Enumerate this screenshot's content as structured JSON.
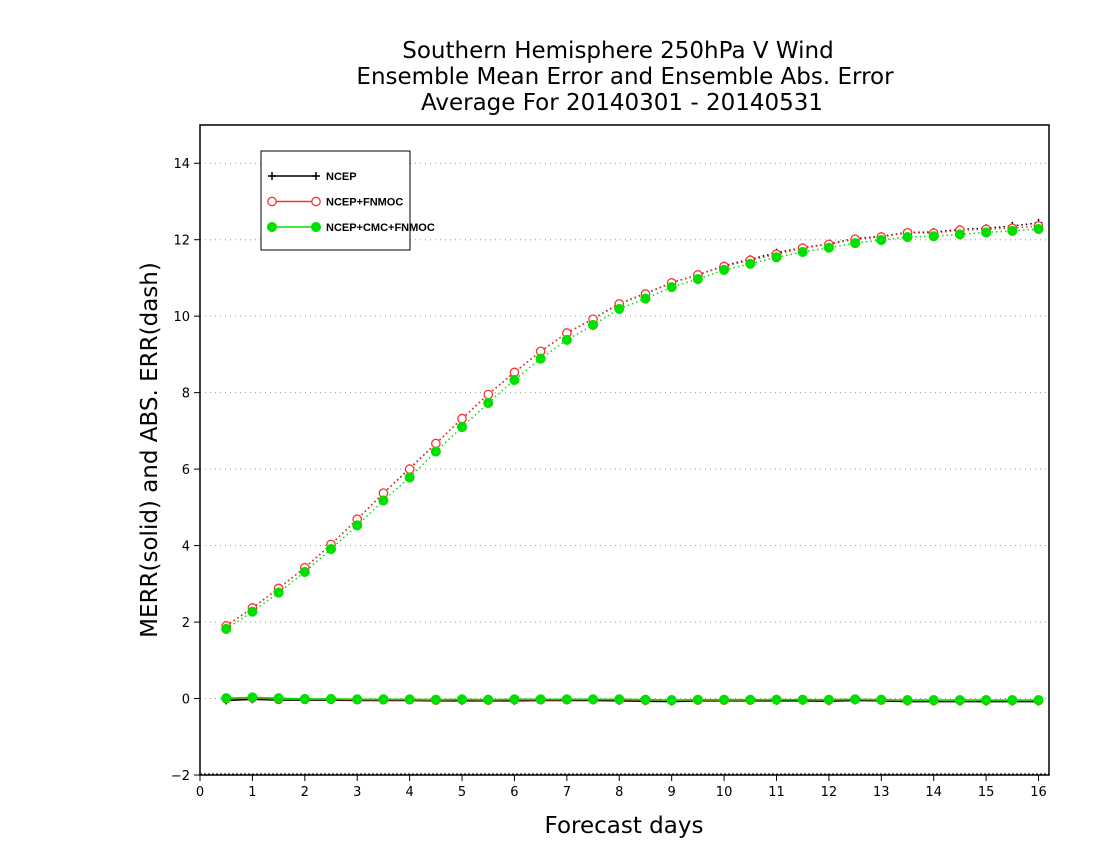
{
  "chart_data": {
    "type": "line",
    "title_lines": [
      "Southern Hemisphere 250hPa V Wind",
      "Ensemble Mean Error and Ensemble Abs. Error",
      "Average For 20140301 - 20140531"
    ],
    "xlabel": "Forecast days",
    "ylabel": "MERR(solid) and ABS. ERR(dash)",
    "xlim": [
      0,
      16.2
    ],
    "ylim": [
      -2,
      15
    ],
    "x_ticks": [
      0,
      1,
      2,
      3,
      4,
      5,
      6,
      7,
      8,
      9,
      10,
      11,
      12,
      13,
      14,
      15,
      16
    ],
    "y_ticks": [
      -2,
      0,
      2,
      4,
      6,
      8,
      10,
      12,
      14
    ],
    "grid": "horizontal dotted",
    "legend_position": "top-left",
    "x": [
      0.5,
      1,
      1.5,
      2,
      2.5,
      3,
      3.5,
      4,
      4.5,
      5,
      5.5,
      6,
      6.5,
      7,
      7.5,
      8,
      8.5,
      9,
      9.5,
      10,
      10.5,
      11,
      11.5,
      12,
      12.5,
      13,
      13.5,
      14,
      14.5,
      15,
      15.5,
      16
    ],
    "series": [
      {
        "name": "NCEP",
        "color": "#000000",
        "marker": "plus",
        "abs_err": [
          1.9,
          2.37,
          2.88,
          3.42,
          4.03,
          4.69,
          5.37,
          6.02,
          6.67,
          7.32,
          7.96,
          8.53,
          9.08,
          9.56,
          9.93,
          10.33,
          10.59,
          10.88,
          11.08,
          11.32,
          11.49,
          11.66,
          11.79,
          11.89,
          12.03,
          12.09,
          12.19,
          12.2,
          12.27,
          12.3,
          12.36,
          12.44
        ],
        "mean_err": [
          -0.05,
          -0.02,
          -0.04,
          -0.04,
          -0.04,
          -0.05,
          -0.05,
          -0.05,
          -0.06,
          -0.06,
          -0.06,
          -0.06,
          -0.05,
          -0.05,
          -0.05,
          -0.06,
          -0.07,
          -0.08,
          -0.06,
          -0.06,
          -0.06,
          -0.06,
          -0.06,
          -0.07,
          -0.05,
          -0.06,
          -0.08,
          -0.08,
          -0.08,
          -0.08,
          -0.08,
          -0.08
        ]
      },
      {
        "name": "NCEP+FNMOC",
        "color": "#ff3030",
        "marker": "open-circle",
        "abs_err": [
          1.9,
          2.37,
          2.88,
          3.42,
          4.03,
          4.69,
          5.37,
          6.0,
          6.67,
          7.32,
          7.95,
          8.53,
          9.08,
          9.56,
          9.92,
          10.32,
          10.58,
          10.87,
          11.08,
          11.3,
          11.46,
          11.62,
          11.78,
          11.88,
          12.01,
          12.07,
          12.18,
          12.17,
          12.25,
          12.27,
          12.3,
          12.36
        ],
        "mean_err": [
          0.0,
          0.02,
          -0.02,
          -0.02,
          -0.02,
          -0.03,
          -0.03,
          -0.03,
          -0.04,
          -0.03,
          -0.04,
          -0.03,
          -0.03,
          -0.03,
          -0.02,
          -0.03,
          -0.04,
          -0.05,
          -0.04,
          -0.04,
          -0.04,
          -0.03,
          -0.03,
          -0.04,
          -0.02,
          -0.04,
          -0.05,
          -0.05,
          -0.05,
          -0.05,
          -0.05,
          -0.05
        ]
      },
      {
        "name": "NCEP+CMC+FNMOC",
        "color": "#00e000",
        "marker": "filled-circle",
        "abs_err": [
          1.82,
          2.27,
          2.77,
          3.31,
          3.91,
          4.53,
          5.18,
          5.78,
          6.46,
          7.1,
          7.73,
          8.33,
          8.89,
          9.38,
          9.77,
          10.19,
          10.46,
          10.76,
          10.97,
          11.21,
          11.37,
          11.54,
          11.68,
          11.79,
          11.91,
          11.99,
          12.07,
          12.09,
          12.14,
          12.19,
          12.23,
          12.28
        ],
        "mean_err": [
          0.01,
          0.03,
          0.01,
          -0.01,
          -0.01,
          -0.02,
          -0.02,
          -0.02,
          -0.03,
          -0.02,
          -0.03,
          -0.02,
          -0.02,
          -0.02,
          -0.02,
          -0.02,
          -0.03,
          -0.04,
          -0.03,
          -0.03,
          -0.03,
          -0.03,
          -0.03,
          -0.03,
          -0.02,
          -0.03,
          -0.04,
          -0.04,
          -0.04,
          -0.04,
          -0.04,
          -0.04
        ]
      }
    ]
  }
}
